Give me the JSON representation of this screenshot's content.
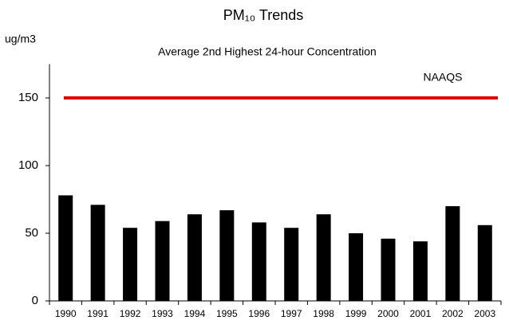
{
  "chart_data": {
    "type": "bar",
    "title": "PM₁₀ Trends",
    "subtitle": "Average 2nd Highest  24-hour Concentration",
    "y_label": "ug/m3",
    "categories": [
      "1990",
      "1991",
      "1992",
      "1993",
      "1994",
      "1995",
      "1996",
      "1997",
      "1998",
      "1999",
      "2000",
      "2001",
      "2002",
      "2003"
    ],
    "values": [
      78,
      71,
      54,
      59,
      64,
      67,
      58,
      54,
      64,
      50,
      46,
      44,
      70,
      56
    ],
    "color": "#000000",
    "ylim": [
      0,
      175
    ],
    "yticks": [
      0,
      50,
      100,
      150
    ],
    "grid": false,
    "reference_line": {
      "label": "NAAQS",
      "value": 150,
      "color": "#e00000"
    }
  }
}
